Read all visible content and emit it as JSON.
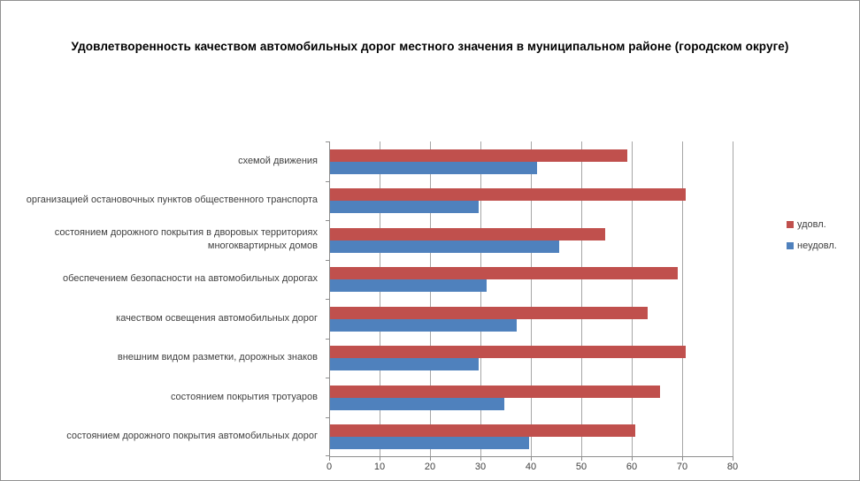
{
  "title": "Удовлетворенность качеством автомобильных дорог местного значения в муниципальном районе (городском округе)",
  "chart_data": {
    "type": "bar",
    "orientation": "horizontal",
    "title": "Удовлетворенность качеством автомобильных дорог местного значения в муниципальном районе (городском округе)",
    "categories": [
      "схемой движения",
      "организацией остановочных пунктов общественного транспорта",
      "состоянием дорожного покрытия в дворовых территориях многоквартирных домов",
      "обеспечением безопасности на автомобильных дорогах",
      "качеством освещения автомобильных дорог",
      "внешним видом разметки, дорожных знаков",
      "состоянием покрытия тротуаров",
      "состоянием дорожного покрытия автомобильных дорог"
    ],
    "categories_order": "top-to-bottom",
    "series": [
      {
        "name": "удовл.",
        "color": "#C0504D",
        "values": [
          59,
          70.5,
          54.5,
          69,
          63,
          70.5,
          65.5,
          60.5
        ]
      },
      {
        "name": "неудовл.",
        "color": "#4F81BD",
        "values": [
          41,
          29.5,
          45.5,
          31,
          37,
          29.5,
          34.5,
          39.5
        ]
      }
    ],
    "x_axis": {
      "min": 0,
      "max": 80,
      "tick_step": 10,
      "tick_labels": [
        "0",
        "10",
        "20",
        "30",
        "40",
        "50",
        "60",
        "70",
        "80"
      ]
    },
    "y_axis": {
      "label": ""
    },
    "grid": true,
    "legend_position": "right",
    "colors": {
      "grid": "#a6a6a6",
      "axis": "#8e8e8e",
      "text": "#404040",
      "title": "#000000"
    }
  }
}
